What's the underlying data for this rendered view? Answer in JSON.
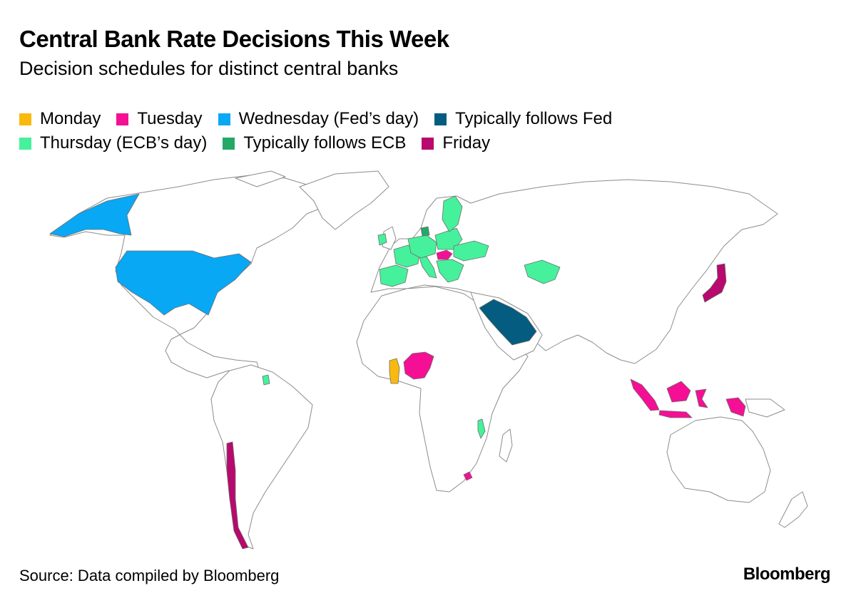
{
  "header": {
    "title": "Central Bank Rate Decisions This Week",
    "subtitle": "Decision schedules for distinct central banks"
  },
  "legend": {
    "items": [
      {
        "key": "monday",
        "label": "Monday",
        "color": "#F9BA0D"
      },
      {
        "key": "tuesday",
        "label": "Tuesday",
        "color": "#F50F95"
      },
      {
        "key": "wednesday",
        "label": "Wednesday (Fed’s day)",
        "color": "#08A8F5"
      },
      {
        "key": "follows_fed",
        "label": "Typically follows Fed",
        "color": "#045C80"
      },
      {
        "key": "thursday",
        "label": "Thursday (ECB’s day)",
        "color": "#46F19C"
      },
      {
        "key": "follows_ecb",
        "label": "Typically follows ECB",
        "color": "#24A868"
      },
      {
        "key": "friday",
        "label": "Friday",
        "color": "#B7096E"
      }
    ]
  },
  "map": {
    "highlighted_regions": [
      {
        "region": "United States",
        "group": "wednesday"
      },
      {
        "region": "Saudi Arabia",
        "group": "follows_fed"
      },
      {
        "region": "Ghana",
        "group": "monday"
      },
      {
        "region": "Nigeria",
        "group": "tuesday"
      },
      {
        "region": "Hungary",
        "group": "tuesday"
      },
      {
        "region": "Indonesia",
        "group": "tuesday"
      },
      {
        "region": "Lesotho",
        "group": "tuesday"
      },
      {
        "region": "Euro area and Europe",
        "group": "thursday"
      },
      {
        "region": "Kazakhstan",
        "group": "thursday"
      },
      {
        "region": "Suriname",
        "group": "thursday"
      },
      {
        "region": "Malawi",
        "group": "thursday"
      },
      {
        "region": "Denmark",
        "group": "follows_ecb"
      },
      {
        "region": "Japan",
        "group": "friday"
      },
      {
        "region": "Chile",
        "group": "friday"
      }
    ]
  },
  "footer": {
    "source": "Source: Data compiled by Bloomberg",
    "brand": "Bloomberg"
  }
}
